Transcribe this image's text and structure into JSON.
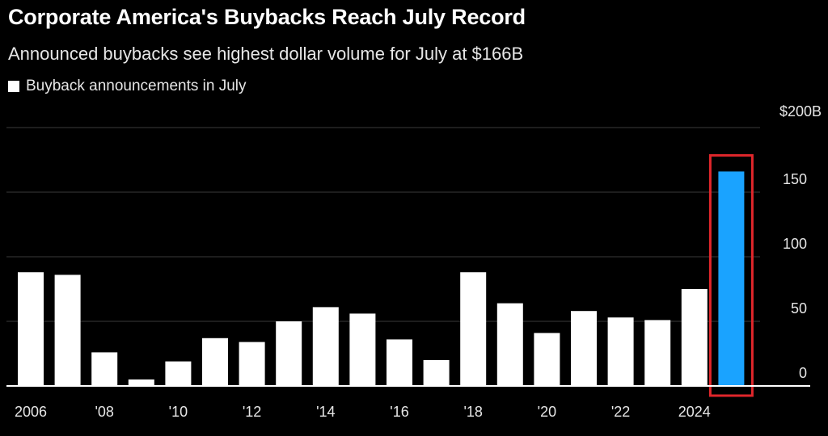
{
  "chart_data": {
    "type": "bar",
    "title": "Corporate America's Buybacks Reach July Record",
    "subtitle": "Announced buybacks see highest dollar volume for July at $166B",
    "legend": "Buyback announcements in July",
    "ylabel_top": "$200B",
    "ylim": [
      0,
      200
    ],
    "yticks": [
      {
        "value": 0,
        "label": "0"
      },
      {
        "value": 50,
        "label": "50"
      },
      {
        "value": 100,
        "label": "100"
      },
      {
        "value": 150,
        "label": "150"
      },
      {
        "value": 200,
        "label": "$200B"
      }
    ],
    "categories": [
      "2006",
      "2007",
      "2008",
      "2009",
      "2010",
      "2011",
      "2012",
      "2013",
      "2014",
      "2015",
      "2016",
      "2017",
      "2018",
      "2019",
      "2020",
      "2021",
      "2022",
      "2023",
      "2024",
      "2025"
    ],
    "xtick_labels": [
      {
        "index": 0,
        "label": "2006"
      },
      {
        "index": 2,
        "label": "'08"
      },
      {
        "index": 4,
        "label": "'10"
      },
      {
        "index": 6,
        "label": "'12"
      },
      {
        "index": 8,
        "label": "'14"
      },
      {
        "index": 10,
        "label": "'16"
      },
      {
        "index": 12,
        "label": "'18"
      },
      {
        "index": 14,
        "label": "'20"
      },
      {
        "index": 16,
        "label": "'22"
      },
      {
        "index": 18,
        "label": "2024"
      }
    ],
    "values": [
      88,
      86,
      26,
      5,
      19,
      37,
      34,
      50,
      61,
      56,
      36,
      20,
      88,
      64,
      41,
      58,
      53,
      51,
      75,
      166
    ],
    "highlight_index": 19,
    "colors": {
      "background": "#000000",
      "bar": "#ffffff",
      "highlight_bar": "#1aa3ff",
      "highlight_box": "#e0262b",
      "grid": "#3a3a3a",
      "axis": "#ffffff"
    }
  }
}
